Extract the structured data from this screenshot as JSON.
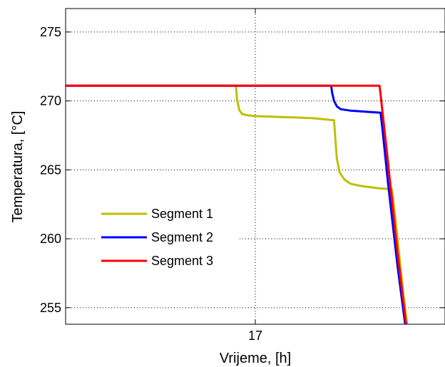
{
  "chart_data": {
    "type": "line",
    "title": "",
    "xlabel": "Vrijeme, [h]",
    "ylabel": "Temperatura, [°C]",
    "xlim": [
      16.0,
      18.0
    ],
    "ylim": [
      253.8,
      276.7
    ],
    "x_ticks": [
      17
    ],
    "y_ticks": [
      255,
      260,
      265,
      270,
      275
    ],
    "grid": true,
    "legend_position": "lower-left",
    "series": [
      {
        "name": "Segment 1",
        "color": "#bfbf00",
        "x": [
          16.0,
          16.898,
          16.903,
          16.915,
          16.93,
          16.96,
          17.0,
          17.1,
          17.2,
          17.3,
          17.415,
          17.422,
          17.43,
          17.445,
          17.47,
          17.5,
          17.55,
          17.6,
          17.66,
          17.72,
          17.73,
          17.75,
          17.78,
          17.8
        ],
        "values": [
          271.1,
          271.1,
          270.2,
          269.35,
          269.05,
          268.95,
          268.9,
          268.85,
          268.8,
          268.75,
          268.6,
          267.2,
          265.8,
          264.8,
          264.3,
          264.0,
          263.85,
          263.75,
          263.65,
          263.6,
          262.5,
          260.0,
          256.0,
          253.8
        ]
      },
      {
        "name": "Segment 2",
        "color": "#0000ff",
        "x": [
          16.0,
          17.4,
          17.405,
          17.415,
          17.43,
          17.45,
          17.5,
          17.55,
          17.6,
          17.66,
          17.67,
          17.7,
          17.75,
          17.79
        ],
        "values": [
          271.1,
          271.1,
          270.6,
          270.0,
          269.6,
          269.4,
          269.3,
          269.25,
          269.2,
          269.15,
          268.0,
          264.0,
          258.0,
          253.8
        ]
      },
      {
        "name": "Segment 3",
        "color": "#ff0000",
        "x": [
          16.0,
          17.655,
          17.66,
          17.7,
          17.75,
          17.795
        ],
        "values": [
          271.1,
          271.1,
          270.5,
          265.5,
          259.0,
          253.8
        ]
      }
    ]
  }
}
